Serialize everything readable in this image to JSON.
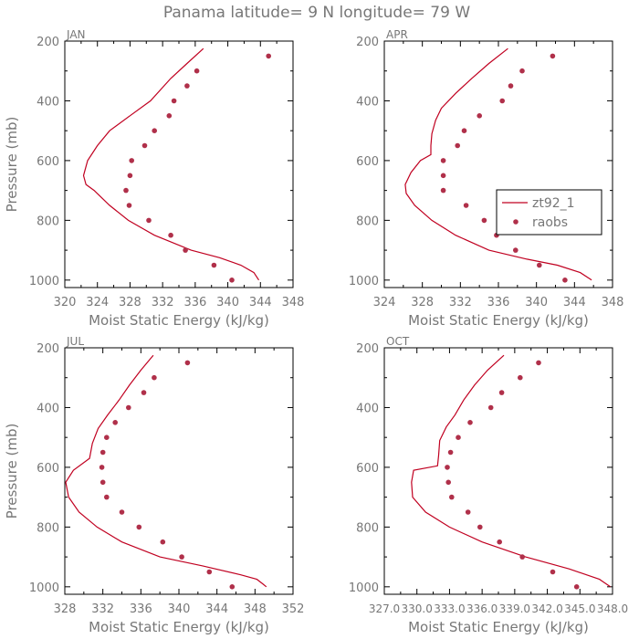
{
  "title": "Panama  latitude= 9 N longitude= 79 W",
  "colors": {
    "model": "#c00020",
    "obs": "#b0304a",
    "text": "#777777",
    "axis": "#000000"
  },
  "legend": {
    "model_label": "zt92_1",
    "obs_label": "raobs"
  },
  "chart_data": [
    {
      "type": "line",
      "panel": "JAN",
      "xlabel": "Moist Static Energy (kJ/kg)",
      "ylabel": "Pressure (mb)",
      "xlim": [
        320,
        348
      ],
      "ylim": [
        1025,
        200
      ],
      "xticks": [
        320,
        324,
        328,
        332,
        336,
        340,
        344,
        348
      ],
      "xtick_labels": [
        "320",
        "324",
        "328",
        "332",
        "336",
        "340",
        "344",
        "348"
      ],
      "yticks": [
        200,
        400,
        600,
        800,
        1000
      ],
      "series": [
        {
          "name": "zt92_1",
          "style": "line",
          "x": [
            337.0,
            335.0,
            333.0,
            330.5,
            328.0,
            325.5,
            324.0,
            322.8,
            322.3,
            322.6,
            323.6,
            325.5,
            327.8,
            331.0,
            335.5,
            339.0,
            341.6,
            343.2,
            343.8
          ],
          "y": [
            225,
            275,
            325,
            400,
            450,
            500,
            550,
            600,
            650,
            680,
            700,
            750,
            800,
            850,
            900,
            925,
            950,
            975,
            1000
          ]
        },
        {
          "name": "raobs",
          "style": "marker",
          "x": [
            345.0,
            336.2,
            335.0,
            333.4,
            332.8,
            331.0,
            329.8,
            328.2,
            328.0,
            327.5,
            327.9,
            330.3,
            333.0,
            334.8,
            338.3,
            340.5
          ],
          "y": [
            250,
            300,
            350,
            400,
            450,
            500,
            550,
            600,
            650,
            700,
            750,
            800,
            850,
            900,
            950,
            1000
          ]
        }
      ]
    },
    {
      "type": "line",
      "panel": "APR",
      "xlabel": "Moist Static Energy (kJ/kg)",
      "ylabel": "",
      "xlim": [
        324,
        348
      ],
      "ylim": [
        1025,
        200
      ],
      "xticks": [
        324,
        328,
        332,
        336,
        340,
        344,
        348
      ],
      "xtick_labels": [
        "324",
        "328",
        "332",
        "336",
        "340",
        "344",
        "348"
      ],
      "yticks": [
        200,
        400,
        600,
        800,
        1000
      ],
      "series": [
        {
          "name": "zt92_1",
          "style": "line",
          "x": [
            337.0,
            335.0,
            333.2,
            331.5,
            330.0,
            329.4,
            329.0,
            328.9,
            328.9,
            327.8,
            326.8,
            326.2,
            326.3,
            327.2,
            329.0,
            331.5,
            335.0,
            339.0,
            342.2,
            344.6,
            345.8
          ],
          "y": [
            225,
            275,
            325,
            375,
            425,
            465,
            510,
            550,
            580,
            600,
            640,
            680,
            710,
            750,
            800,
            850,
            900,
            930,
            950,
            975,
            1000
          ]
        },
        {
          "name": "raobs",
          "style": "marker",
          "x": [
            341.7,
            338.5,
            337.3,
            336.4,
            334.0,
            332.4,
            331.7,
            330.2,
            330.2,
            330.2,
            332.6,
            334.5,
            335.8,
            337.8,
            340.3,
            343.0
          ],
          "y": [
            250,
            300,
            350,
            400,
            450,
            500,
            550,
            600,
            650,
            700,
            750,
            800,
            850,
            900,
            950,
            1000
          ]
        }
      ]
    },
    {
      "type": "line",
      "panel": "JUL",
      "xlabel": "Moist Static Energy (kJ/kg)",
      "ylabel": "Pressure (mb)",
      "xlim": [
        328,
        352
      ],
      "ylim": [
        1025,
        200
      ],
      "xticks": [
        328,
        332,
        336,
        340,
        344,
        348,
        352
      ],
      "xtick_labels": [
        "328",
        "332",
        "336",
        "340",
        "344",
        "348",
        "352"
      ],
      "yticks": [
        200,
        400,
        600,
        800,
        1000
      ],
      "series": [
        {
          "name": "zt92_1",
          "style": "line",
          "x": [
            337.3,
            336.0,
            334.8,
            333.7,
            332.5,
            331.5,
            330.9,
            330.6,
            328.9,
            328.1,
            328.4,
            329.5,
            331.4,
            334.0,
            338.0,
            342.5,
            346.5,
            348.2,
            348.8,
            349.2
          ],
          "y": [
            225,
            275,
            325,
            375,
            425,
            470,
            520,
            570,
            610,
            650,
            700,
            750,
            800,
            850,
            900,
            930,
            960,
            975,
            990,
            1000
          ]
        },
        {
          "name": "raobs",
          "style": "marker",
          "x": [
            340.9,
            337.4,
            336.3,
            334.7,
            333.3,
            332.4,
            332.0,
            331.9,
            332.0,
            332.4,
            334.0,
            335.8,
            338.3,
            340.3,
            343.2,
            345.6
          ],
          "y": [
            250,
            300,
            350,
            400,
            450,
            500,
            550,
            600,
            650,
            700,
            750,
            800,
            850,
            900,
            950,
            1000
          ]
        }
      ]
    },
    {
      "type": "line",
      "panel": "OCT",
      "xlabel": "Moist Static Energy (kJ/kg)",
      "ylabel": "",
      "xlim": [
        327.0,
        348.0
      ],
      "ylim": [
        1025,
        200
      ],
      "xticks": [
        327.0,
        330.0,
        333.0,
        336.0,
        339.0,
        342.0,
        345.0,
        348.0
      ],
      "xtick_labels": [
        "327.0",
        "330.0",
        "333.0",
        "336.0",
        "339.0",
        "342.0",
        "345.0",
        "348.0"
      ],
      "yticks": [
        200,
        400,
        600,
        800,
        1000
      ],
      "series": [
        {
          "name": "zt92_1",
          "style": "line",
          "x": [
            338.0,
            336.5,
            335.3,
            334.3,
            333.5,
            332.7,
            332.1,
            332.0,
            331.9,
            329.7,
            329.5,
            329.6,
            330.8,
            333.0,
            336.0,
            340.0,
            344.0,
            346.8,
            347.8
          ],
          "y": [
            225,
            275,
            325,
            375,
            425,
            465,
            510,
            560,
            595,
            610,
            650,
            700,
            750,
            800,
            850,
            900,
            940,
            975,
            1000
          ]
        },
        {
          "name": "raobs",
          "style": "marker",
          "x": [
            341.2,
            339.5,
            337.8,
            336.8,
            334.9,
            333.8,
            333.1,
            332.8,
            332.9,
            333.2,
            334.7,
            335.8,
            337.6,
            339.7,
            342.5,
            344.7
          ],
          "y": [
            250,
            300,
            350,
            400,
            450,
            500,
            550,
            600,
            650,
            700,
            750,
            800,
            850,
            900,
            950,
            1000
          ]
        }
      ]
    }
  ]
}
